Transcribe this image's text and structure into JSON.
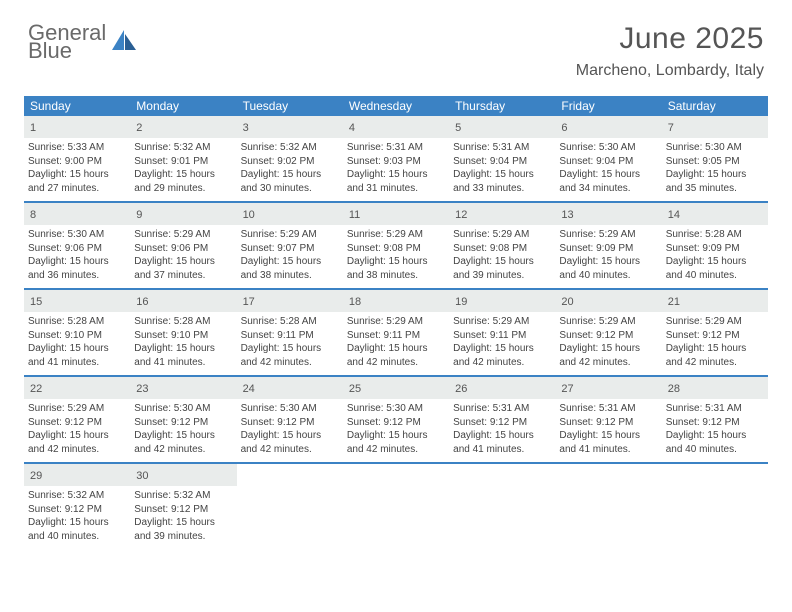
{
  "logo": {
    "word1": "General",
    "word2": "Blue"
  },
  "title": "June 2025",
  "subtitle": "Marcheno, Lombardy, Italy",
  "colors": {
    "header_bg": "#3b82c4",
    "daynum_bg": "#e9eceb",
    "text": "#444444",
    "title_text": "#555555"
  },
  "day_names": [
    "Sunday",
    "Monday",
    "Tuesday",
    "Wednesday",
    "Thursday",
    "Friday",
    "Saturday"
  ],
  "weeks": [
    [
      {
        "n": "1",
        "sr": "5:33 AM",
        "ss": "9:00 PM",
        "dl": "15 hours and 27 minutes."
      },
      {
        "n": "2",
        "sr": "5:32 AM",
        "ss": "9:01 PM",
        "dl": "15 hours and 29 minutes."
      },
      {
        "n": "3",
        "sr": "5:32 AM",
        "ss": "9:02 PM",
        "dl": "15 hours and 30 minutes."
      },
      {
        "n": "4",
        "sr": "5:31 AM",
        "ss": "9:03 PM",
        "dl": "15 hours and 31 minutes."
      },
      {
        "n": "5",
        "sr": "5:31 AM",
        "ss": "9:04 PM",
        "dl": "15 hours and 33 minutes."
      },
      {
        "n": "6",
        "sr": "5:30 AM",
        "ss": "9:04 PM",
        "dl": "15 hours and 34 minutes."
      },
      {
        "n": "7",
        "sr": "5:30 AM",
        "ss": "9:05 PM",
        "dl": "15 hours and 35 minutes."
      }
    ],
    [
      {
        "n": "8",
        "sr": "5:30 AM",
        "ss": "9:06 PM",
        "dl": "15 hours and 36 minutes."
      },
      {
        "n": "9",
        "sr": "5:29 AM",
        "ss": "9:06 PM",
        "dl": "15 hours and 37 minutes."
      },
      {
        "n": "10",
        "sr": "5:29 AM",
        "ss": "9:07 PM",
        "dl": "15 hours and 38 minutes."
      },
      {
        "n": "11",
        "sr": "5:29 AM",
        "ss": "9:08 PM",
        "dl": "15 hours and 38 minutes."
      },
      {
        "n": "12",
        "sr": "5:29 AM",
        "ss": "9:08 PM",
        "dl": "15 hours and 39 minutes."
      },
      {
        "n": "13",
        "sr": "5:29 AM",
        "ss": "9:09 PM",
        "dl": "15 hours and 40 minutes."
      },
      {
        "n": "14",
        "sr": "5:28 AM",
        "ss": "9:09 PM",
        "dl": "15 hours and 40 minutes."
      }
    ],
    [
      {
        "n": "15",
        "sr": "5:28 AM",
        "ss": "9:10 PM",
        "dl": "15 hours and 41 minutes."
      },
      {
        "n": "16",
        "sr": "5:28 AM",
        "ss": "9:10 PM",
        "dl": "15 hours and 41 minutes."
      },
      {
        "n": "17",
        "sr": "5:28 AM",
        "ss": "9:11 PM",
        "dl": "15 hours and 42 minutes."
      },
      {
        "n": "18",
        "sr": "5:29 AM",
        "ss": "9:11 PM",
        "dl": "15 hours and 42 minutes."
      },
      {
        "n": "19",
        "sr": "5:29 AM",
        "ss": "9:11 PM",
        "dl": "15 hours and 42 minutes."
      },
      {
        "n": "20",
        "sr": "5:29 AM",
        "ss": "9:12 PM",
        "dl": "15 hours and 42 minutes."
      },
      {
        "n": "21",
        "sr": "5:29 AM",
        "ss": "9:12 PM",
        "dl": "15 hours and 42 minutes."
      }
    ],
    [
      {
        "n": "22",
        "sr": "5:29 AM",
        "ss": "9:12 PM",
        "dl": "15 hours and 42 minutes."
      },
      {
        "n": "23",
        "sr": "5:30 AM",
        "ss": "9:12 PM",
        "dl": "15 hours and 42 minutes."
      },
      {
        "n": "24",
        "sr": "5:30 AM",
        "ss": "9:12 PM",
        "dl": "15 hours and 42 minutes."
      },
      {
        "n": "25",
        "sr": "5:30 AM",
        "ss": "9:12 PM",
        "dl": "15 hours and 42 minutes."
      },
      {
        "n": "26",
        "sr": "5:31 AM",
        "ss": "9:12 PM",
        "dl": "15 hours and 41 minutes."
      },
      {
        "n": "27",
        "sr": "5:31 AM",
        "ss": "9:12 PM",
        "dl": "15 hours and 41 minutes."
      },
      {
        "n": "28",
        "sr": "5:31 AM",
        "ss": "9:12 PM",
        "dl": "15 hours and 40 minutes."
      }
    ],
    [
      {
        "n": "29",
        "sr": "5:32 AM",
        "ss": "9:12 PM",
        "dl": "15 hours and 40 minutes."
      },
      {
        "n": "30",
        "sr": "5:32 AM",
        "ss": "9:12 PM",
        "dl": "15 hours and 39 minutes."
      },
      null,
      null,
      null,
      null,
      null
    ]
  ],
  "labels": {
    "sunrise": "Sunrise:",
    "sunset": "Sunset:",
    "daylight": "Daylight:"
  }
}
